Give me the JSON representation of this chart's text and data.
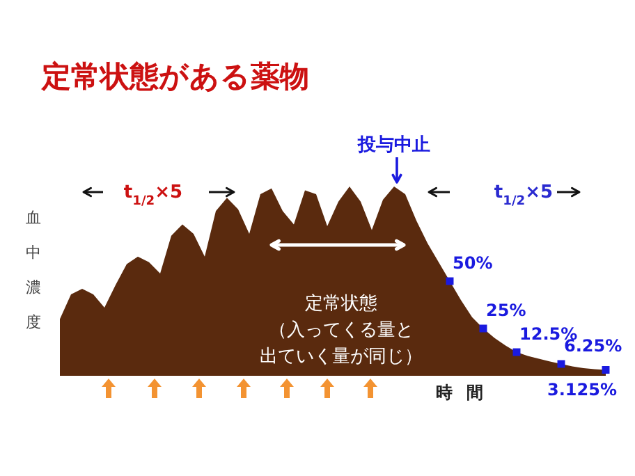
{
  "chart_data": {
    "type": "area",
    "title": "定常状態がある薬物",
    "xlabel": "時間",
    "ylabel": "血中濃度",
    "annotations": [
      "t$_{1/2}$×5",
      "t$_{1/2}$×5",
      "投与中止",
      "定常状態",
      "（入ってくる量と出ていく量が同じ）"
    ],
    "categories": [
      null,
      null,
      null,
      null,
      null,
      null,
      null,
      null,
      null,
      null,
      null,
      null,
      null,
      null,
      null,
      null,
      null,
      null,
      null,
      null,
      null,
      null,
      null,
      null,
      null,
      null,
      null,
      null,
      null,
      null,
      null,
      null,
      null,
      null,
      null,
      null,
      null,
      null,
      null,
      null,
      null,
      null,
      null,
      null,
      null,
      null,
      null,
      null,
      null,
      null
    ],
    "series": [
      {
        "color": "#5a2a0e",
        "values": [
          30,
          43,
          46,
          43,
          36,
          48,
          59,
          63,
          60,
          54,
          74,
          80,
          75,
          63,
          87,
          94,
          88,
          75,
          96,
          99,
          87,
          80,
          98,
          96,
          79,
          92,
          100,
          92,
          77,
          93,
          100,
          96,
          82,
          70,
          60,
          50,
          40,
          31,
          25,
          20,
          16,
          12.5,
          10.5,
          9,
          7.5,
          6.25,
          5,
          4,
          3.5,
          3.125
        ],
        "value_labels": [
          null,
          null,
          null,
          null,
          null,
          null,
          null,
          null,
          null,
          null,
          null,
          null,
          null,
          null,
          null,
          null,
          null,
          null,
          null,
          null,
          null,
          null,
          null,
          null,
          null,
          null,
          null,
          null,
          null,
          null,
          null,
          null,
          null,
          null,
          null,
          "50%",
          null,
          null,
          "25%",
          null,
          null,
          "12.5%",
          null,
          null,
          null,
          "6.25%",
          null,
          null,
          null,
          "3.125%"
        ],
        "colors": [
          null,
          null,
          null,
          null,
          null,
          null,
          null,
          null,
          null,
          null,
          null,
          null,
          null,
          null,
          null,
          null,
          null,
          null,
          null,
          null,
          null,
          null,
          null,
          null,
          null,
          null,
          null,
          null,
          null,
          null,
          null,
          null,
          null,
          null,
          null,
          "#1a1adf",
          null,
          null,
          "#1a1adf",
          null,
          null,
          "#1a1adf",
          null,
          null,
          null,
          "#1a1adf",
          null,
          null,
          null,
          "#1a1adf"
        ]
      }
    ]
  }
}
